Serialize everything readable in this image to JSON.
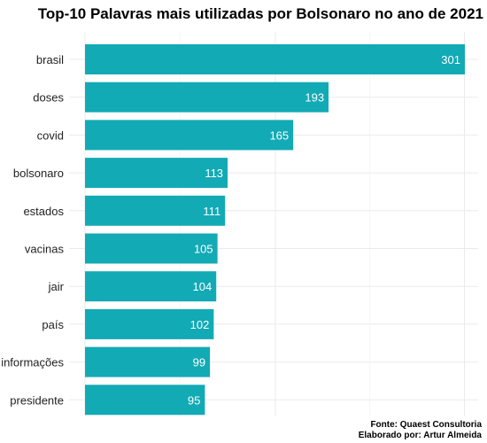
{
  "chart_data": {
    "type": "bar",
    "orientation": "horizontal",
    "title": "Top-10 Palavras mais utilizadas por Bolsonaro no ano de 2021",
    "categories": [
      "brasil",
      "doses",
      "covid",
      "bolsonaro",
      "estados",
      "vacinas",
      "jair",
      "país",
      "informações",
      "presidente"
    ],
    "values": [
      301,
      193,
      165,
      113,
      111,
      105,
      104,
      102,
      99,
      95
    ],
    "xlim": [
      0,
      301
    ],
    "x_axis_tick_labels": false,
    "grid": true,
    "data_labels": true,
    "bar_color": "#12aab5",
    "label_color": "#ffffff"
  },
  "caption": {
    "line1": "Fonte: Quaest Consultoria",
    "line2": "Elaborado por: Artur Almeida"
  }
}
